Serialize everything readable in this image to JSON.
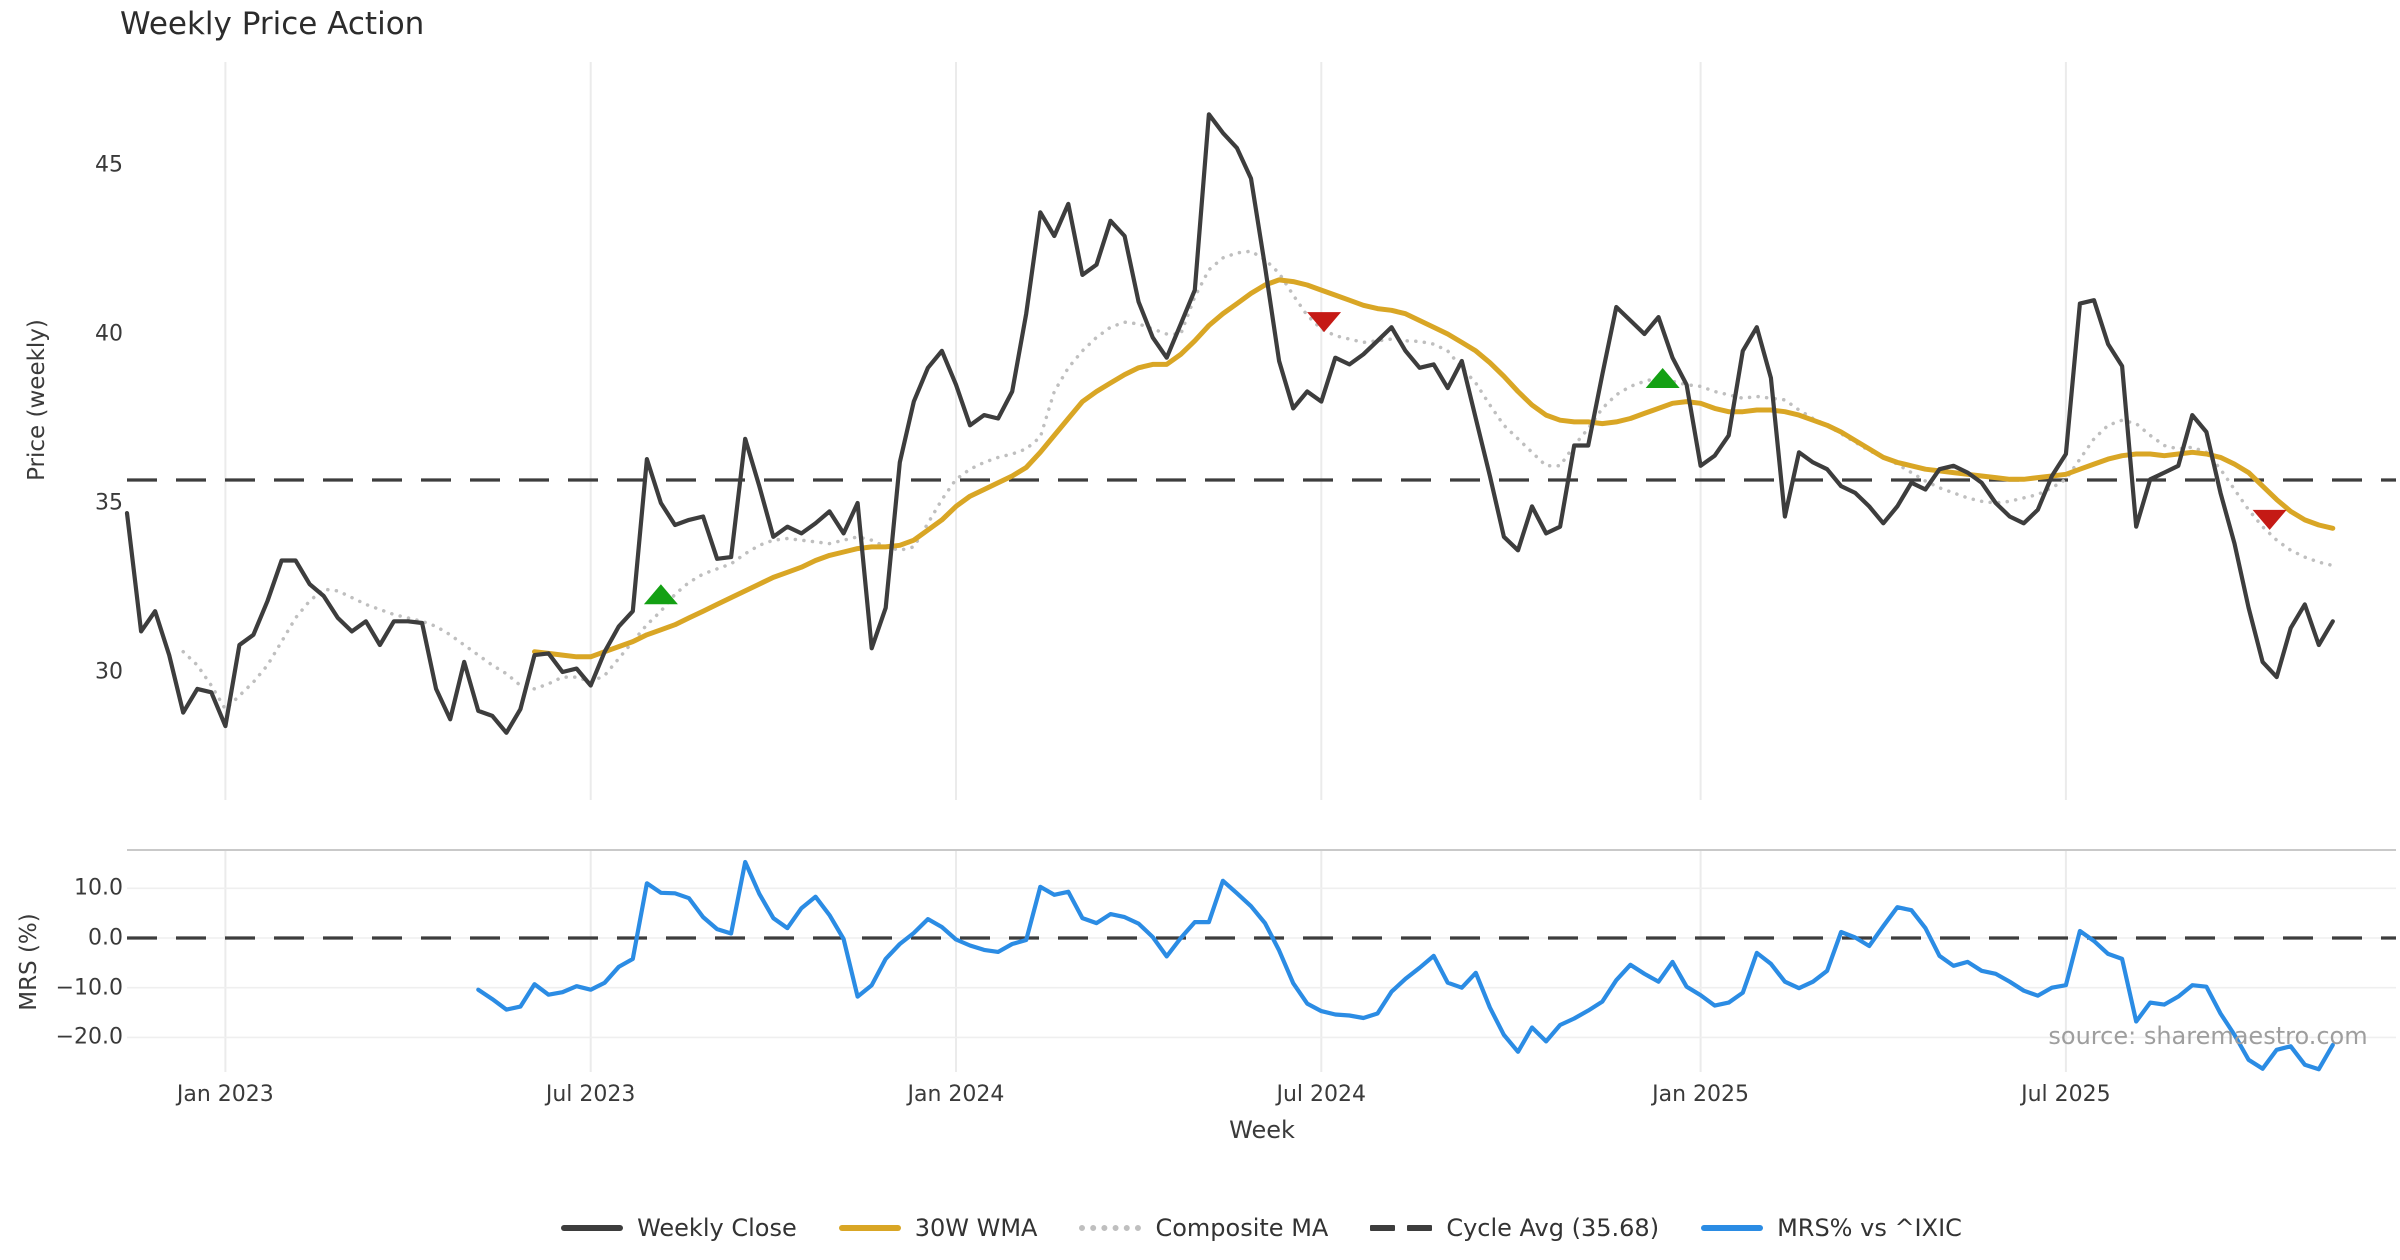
{
  "title": "Weekly Price Action",
  "source_note": "source: sharemaestro.com",
  "colors": {
    "weekly_close": "#3d3d3d",
    "wma": "#d9a625",
    "composite": "#bfbfbf",
    "cycle": "#3d3d3d",
    "mrs": "#2b8ce4",
    "marker_buy": "#14a014",
    "marker_sell": "#c51a15",
    "grid": "#ebebeb",
    "spine": "#c9c9c9",
    "text": "#3a3a3a",
    "title_color": "#2c2c2c",
    "source_color": "#9e9e9e"
  },
  "chart_data": {
    "type": "line",
    "title": "Weekly Price Action",
    "xlabel": "Week",
    "x_unit": "weekly index, week 0 = first plotted week (mid-Nov 2022)",
    "xticks": [
      {
        "label": "Jan 2023",
        "week": 7
      },
      {
        "label": "Jul 2023",
        "week": 33
      },
      {
        "label": "Jan 2024",
        "week": 59
      },
      {
        "label": "Jul 2024",
        "week": 85
      },
      {
        "label": "Jan 2025",
        "week": 112
      },
      {
        "label": "Jul 2025",
        "week": 138
      }
    ],
    "panels": [
      {
        "ylabel": "Price (weekly)",
        "ylim": [
          27.5,
          47.6
        ],
        "yticks": [
          {
            "label": "45",
            "value": 45
          },
          {
            "label": "40",
            "value": 40
          },
          {
            "label": "35",
            "value": 35
          },
          {
            "label": "30",
            "value": 30
          }
        ],
        "grid": "vertical-only",
        "series": [
          {
            "name": "Weekly Close",
            "color_key": "weekly_close",
            "style": "solid",
            "start_week": 0,
            "values": [
              34.7,
              31.2,
              31.8,
              30.5,
              28.8,
              29.5,
              29.4,
              28.4,
              30.8,
              31.1,
              32.1,
              33.3,
              33.3,
              32.6,
              32.25,
              31.6,
              31.2,
              31.5,
              30.8,
              31.5,
              31.5,
              31.45,
              29.5,
              28.6,
              30.3,
              28.85,
              28.7,
              28.2,
              28.9,
              30.5,
              30.55,
              30.0,
              30.1,
              29.6,
              30.6,
              31.35,
              31.8,
              36.3,
              35.0,
              34.35,
              34.5,
              34.6,
              33.35,
              33.4,
              36.9,
              35.5,
              34.0,
              34.3,
              34.1,
              34.4,
              34.75,
              34.1,
              35.0,
              30.7,
              31.9,
              36.2,
              38.0,
              39.0,
              39.5,
              38.5,
              37.3,
              37.6,
              37.5,
              38.3,
              40.6,
              43.6,
              42.9,
              43.85,
              41.75,
              42.05,
              43.35,
              42.9,
              40.95,
              39.9,
              39.3,
              40.3,
              41.3,
              46.5,
              45.95,
              45.5,
              44.6,
              42.0,
              39.2,
              37.8,
              38.3,
              38.0,
              39.3,
              39.1,
              39.4,
              39.8,
              40.2,
              39.5,
              39.0,
              39.1,
              38.4,
              39.2,
              37.5,
              35.8,
              34.0,
              33.6,
              34.9,
              34.1,
              34.3,
              36.7,
              36.7,
              38.8,
              40.8,
              40.4,
              40.0,
              40.5,
              39.3,
              38.5,
              36.1,
              36.4,
              37.0,
              39.5,
              40.2,
              38.7,
              34.6,
              36.5,
              36.2,
              36.0,
              35.5,
              35.3,
              34.9,
              34.4,
              34.9,
              35.6,
              35.4,
              36.0,
              36.1,
              35.9,
              35.6,
              35.0,
              34.6,
              34.4,
              34.8,
              35.8,
              36.45,
              40.9,
              41.0,
              39.7,
              39.05,
              34.3,
              35.7,
              35.9,
              36.1,
              37.6,
              37.1,
              35.3,
              33.8,
              31.9,
              30.3,
              29.85,
              31.3,
              32.0,
              30.8,
              31.5
            ]
          },
          {
            "name": "30W WMA",
            "color_key": "wma",
            "style": "solid",
            "start_week": 29,
            "values": [
              30.6,
              30.55,
              30.5,
              30.45,
              30.45,
              30.6,
              30.75,
              30.9,
              31.1,
              31.25,
              31.4,
              31.6,
              31.8,
              32.0,
              32.2,
              32.4,
              32.6,
              32.8,
              32.95,
              33.1,
              33.3,
              33.45,
              33.55,
              33.65,
              33.7,
              33.7,
              33.75,
              33.9,
              34.2,
              34.5,
              34.9,
              35.2,
              35.4,
              35.6,
              35.8,
              36.05,
              36.5,
              37.0,
              37.5,
              38.0,
              38.3,
              38.55,
              38.8,
              39.0,
              39.1,
              39.1,
              39.4,
              39.8,
              40.25,
              40.6,
              40.9,
              41.2,
              41.45,
              41.6,
              41.55,
              41.45,
              41.3,
              41.15,
              41.0,
              40.85,
              40.75,
              40.7,
              40.6,
              40.4,
              40.2,
              40.0,
              39.75,
              39.5,
              39.15,
              38.75,
              38.3,
              37.9,
              37.6,
              37.45,
              37.4,
              37.4,
              37.35,
              37.4,
              37.5,
              37.65,
              37.8,
              37.95,
              38.0,
              37.95,
              37.8,
              37.7,
              37.7,
              37.75,
              37.75,
              37.7,
              37.6,
              37.45,
              37.3,
              37.1,
              36.85,
              36.6,
              36.35,
              36.2,
              36.1,
              36.0,
              35.95,
              35.9,
              35.85,
              35.8,
              35.75,
              35.7,
              35.7,
              35.75,
              35.8,
              35.85,
              36.0,
              36.15,
              36.3,
              36.4,
              36.45,
              36.45,
              36.4,
              36.45,
              36.5,
              36.45,
              36.35,
              36.15,
              35.9,
              35.5,
              35.1,
              34.75,
              34.5,
              34.35,
              34.25
            ]
          },
          {
            "name": "Composite MA",
            "color_key": "composite",
            "style": "dotted",
            "start_week": 4,
            "values": [
              30.6,
              30.2,
              29.6,
              28.9,
              29.3,
              29.7,
              30.2,
              30.9,
              31.6,
              32.1,
              32.45,
              32.4,
              32.2,
              32.0,
              31.85,
              31.7,
              31.6,
              31.5,
              31.35,
              31.1,
              30.8,
              30.5,
              30.2,
              29.95,
              29.6,
              29.5,
              29.65,
              29.85,
              29.85,
              29.7,
              29.9,
              30.4,
              30.9,
              31.4,
              31.8,
              32.3,
              32.65,
              32.9,
              33.05,
              33.2,
              33.5,
              33.75,
              33.9,
              33.95,
              33.9,
              33.85,
              33.8,
              33.9,
              34.0,
              33.9,
              33.7,
              33.6,
              33.7,
              34.4,
              35.1,
              35.7,
              36.0,
              36.2,
              36.35,
              36.45,
              36.6,
              36.95,
              38.3,
              39.0,
              39.5,
              39.9,
              40.2,
              40.35,
              40.3,
              40.15,
              40.0,
              40.0,
              41.1,
              41.9,
              42.25,
              42.4,
              42.45,
              42.2,
              41.8,
              41.15,
              40.55,
              40.15,
              39.95,
              39.85,
              39.75,
              39.8,
              39.85,
              39.8,
              39.78,
              39.7,
              39.5,
              39.0,
              38.55,
              37.9,
              37.3,
              36.9,
              36.5,
              36.1,
              36.1,
              36.7,
              37.2,
              37.8,
              38.2,
              38.45,
              38.6,
              38.7,
              38.6,
              38.5,
              38.45,
              38.3,
              38.2,
              38.1,
              38.15,
              38.1,
              38.05,
              37.75,
              37.5,
              37.3,
              37.05,
              36.8,
              36.55,
              36.35,
              36.15,
              35.9,
              35.65,
              35.45,
              35.3,
              35.15,
              35.05,
              35.0,
              35.05,
              35.15,
              35.25,
              35.45,
              35.7,
              36.3,
              36.9,
              37.3,
              37.45,
              37.35,
              37.0,
              36.7,
              36.6,
              36.65,
              36.5,
              36.0,
              35.4,
              34.8,
              34.3,
              33.9,
              33.6,
              33.4,
              33.25,
              33.15
            ]
          },
          {
            "name": "Cycle Avg (35.68)",
            "type": "hline",
            "value": 35.68,
            "color_key": "cycle",
            "style": "dashed"
          }
        ],
        "markers": [
          {
            "week": 38,
            "price": 32.3,
            "direction": "up",
            "color_key": "marker_buy"
          },
          {
            "week": 85.2,
            "price": 40.35,
            "direction": "down",
            "color_key": "marker_sell"
          },
          {
            "week": 109.3,
            "price": 38.7,
            "direction": "up",
            "color_key": "marker_buy"
          },
          {
            "week": 152.5,
            "price": 34.5,
            "direction": "down",
            "color_key": "marker_sell"
          }
        ]
      },
      {
        "ylabel": "MRS (%)",
        "ylim": [
          -27.7,
          17.7
        ],
        "yticks": [
          {
            "label": "10.0",
            "value": 10
          },
          {
            "label": "0.0",
            "value": 0
          },
          {
            "label": "−10.0",
            "value": -10
          },
          {
            "label": "−20.0",
            "value": -20
          }
        ],
        "grid": "horizontal-and-vertical",
        "series": [
          {
            "name": "MRS% vs ^IXIC",
            "color_key": "mrs",
            "style": "solid",
            "start_week": 25,
            "values": [
              -10.4,
              -12.3,
              -14.4,
              -13.8,
              -9.3,
              -11.4,
              -10.9,
              -9.7,
              -10.4,
              -9.0,
              -5.8,
              -4.2,
              11.0,
              9.1,
              9.0,
              8.0,
              4.2,
              1.8,
              0.9,
              15.3,
              8.9,
              4.0,
              2.0,
              6.0,
              8.3,
              4.6,
              -0.2,
              -11.8,
              -9.5,
              -4.2,
              -1.2,
              1.0,
              3.8,
              2.2,
              -0.3,
              -1.5,
              -2.4,
              -2.8,
              -1.2,
              -0.4,
              10.3,
              8.7,
              9.3,
              4.0,
              3.0,
              4.8,
              4.2,
              2.9,
              0.2,
              -3.7,
              0.0,
              3.2,
              3.2,
              11.5,
              9.0,
              6.4,
              3.0,
              -2.5,
              -9.1,
              -13.2,
              -14.7,
              -15.4,
              -15.6,
              -16.1,
              -15.2,
              -10.8,
              -8.2,
              -6.0,
              -3.6,
              -9.0,
              -10.0,
              -7.0,
              -14.0,
              -19.5,
              -22.9,
              -18.0,
              -20.8,
              -17.5,
              -16.2,
              -14.6,
              -12.8,
              -8.5,
              -5.4,
              -7.2,
              -8.8,
              -4.8,
              -9.8,
              -11.5,
              -13.6,
              -13.0,
              -11.0,
              -3.0,
              -5.2,
              -8.8,
              -10.1,
              -8.8,
              -6.6,
              1.2,
              0.1,
              -1.6,
              2.4,
              6.2,
              5.6,
              2.0,
              -3.6,
              -5.6,
              -4.8,
              -6.6,
              -7.2,
              -8.8,
              -10.6,
              -11.6,
              -10.0,
              -9.5,
              1.4,
              -0.6,
              -3.2,
              -4.2,
              -16.8,
              -13.0,
              -13.4,
              -11.8,
              -9.5,
              -9.8,
              -15.2,
              -19.5,
              -24.5,
              -26.3,
              -22.5,
              -21.8,
              -25.5,
              -26.4,
              -21.5
            ]
          },
          {
            "name": "Zero reference",
            "type": "hline",
            "value": 0,
            "color_key": "cycle",
            "style": "dashed"
          }
        ]
      }
    ],
    "legend_position": "bottom-center",
    "annotations": [
      "source: sharemaestro.com"
    ]
  },
  "legend": {
    "items": [
      {
        "label": "Weekly Close",
        "swatch": "solid-dark"
      },
      {
        "label": "30W WMA",
        "swatch": "solid-gold"
      },
      {
        "label": "Composite MA",
        "swatch": "dotted-gray"
      },
      {
        "label": "Cycle Avg (35.68)",
        "swatch": "dashed-dark"
      },
      {
        "label": "MRS% vs ^IXIC",
        "swatch": "solid-blue"
      }
    ]
  }
}
